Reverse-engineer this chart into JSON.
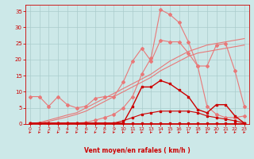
{
  "x": [
    0,
    1,
    2,
    3,
    4,
    5,
    6,
    7,
    8,
    9,
    10,
    11,
    12,
    13,
    14,
    15,
    16,
    17,
    18,
    19,
    20,
    21,
    22,
    23
  ],
  "curves": [
    {
      "label": "line_pink_wiggly",
      "color": "#e87878",
      "linewidth": 0.8,
      "marker": "D",
      "markersize": 2.0,
      "y": [
        8.5,
        8.5,
        5.5,
        8.5,
        6.0,
        5.0,
        5.5,
        8.0,
        8.5,
        8.5,
        13.0,
        19.5,
        23.5,
        19.5,
        26.0,
        25.5,
        25.5,
        22.0,
        18.0,
        18.0,
        24.5,
        25.0,
        16.5,
        5.5
      ]
    },
    {
      "label": "line_pink_peak",
      "color": "#e87878",
      "linewidth": 0.8,
      "marker": "D",
      "markersize": 2.0,
      "y": [
        0.3,
        0.3,
        0.3,
        0.3,
        0.3,
        0.3,
        0.5,
        1.2,
        2.0,
        3.0,
        5.0,
        8.5,
        15.5,
        20.5,
        35.5,
        34.0,
        31.5,
        25.5,
        18.0,
        5.5,
        3.0,
        2.0,
        2.0,
        2.5
      ]
    },
    {
      "label": "line_pink_diag1",
      "color": "#e87878",
      "linewidth": 0.8,
      "marker": null,
      "y": [
        0.0,
        0.5,
        1.2,
        2.0,
        2.8,
        3.5,
        5.0,
        6.5,
        8.0,
        9.5,
        11.0,
        12.5,
        14.0,
        15.5,
        17.5,
        19.5,
        21.0,
        22.5,
        23.5,
        24.5,
        25.0,
        25.5,
        26.0,
        26.5
      ]
    },
    {
      "label": "line_pink_diag2",
      "color": "#e87878",
      "linewidth": 0.8,
      "marker": null,
      "y": [
        0.0,
        0.3,
        0.8,
        1.5,
        2.2,
        3.0,
        4.0,
        5.5,
        7.0,
        8.5,
        10.0,
        11.5,
        13.0,
        14.5,
        16.5,
        18.0,
        19.5,
        21.0,
        22.0,
        22.5,
        23.0,
        23.5,
        24.0,
        24.5
      ]
    },
    {
      "label": "line_dark_main",
      "color": "#cc0000",
      "linewidth": 1.0,
      "marker": "s",
      "markersize": 2.0,
      "y": [
        0.3,
        0.3,
        0.3,
        0.3,
        0.3,
        0.3,
        0.3,
        0.3,
        0.3,
        0.3,
        0.3,
        5.5,
        11.5,
        11.5,
        13.5,
        12.5,
        10.5,
        8.5,
        4.5,
        3.5,
        6.0,
        6.0,
        2.5,
        0.3
      ]
    },
    {
      "label": "line_dark_low",
      "color": "#cc0000",
      "linewidth": 0.8,
      "marker": "s",
      "markersize": 1.5,
      "y": [
        0.3,
        0.3,
        0.3,
        0.3,
        0.3,
        0.3,
        0.3,
        0.3,
        0.3,
        0.3,
        1.0,
        2.0,
        3.0,
        3.5,
        4.0,
        4.0,
        4.0,
        4.0,
        3.5,
        2.5,
        2.0,
        1.5,
        1.0,
        0.3
      ]
    },
    {
      "label": "line_dark_flat",
      "color": "#cc0000",
      "linewidth": 0.7,
      "marker": "s",
      "markersize": 1.5,
      "y": [
        0.3,
        0.3,
        0.3,
        0.3,
        0.3,
        0.3,
        0.3,
        0.3,
        0.3,
        0.3,
        0.3,
        0.3,
        0.3,
        0.3,
        0.3,
        0.3,
        0.3,
        0.3,
        0.3,
        0.3,
        0.3,
        0.3,
        0.3,
        0.3
      ]
    }
  ],
  "xlabel": "Vent moyen/en rafales ( km/h )",
  "xlim": [
    -0.5,
    23.5
  ],
  "ylim": [
    0,
    37
  ],
  "yticks": [
    0,
    5,
    10,
    15,
    20,
    25,
    30,
    35
  ],
  "xticks": [
    0,
    1,
    2,
    3,
    4,
    5,
    6,
    7,
    8,
    9,
    10,
    11,
    12,
    13,
    14,
    15,
    16,
    17,
    18,
    19,
    20,
    21,
    22,
    23
  ],
  "bg_color": "#cce8e8",
  "grid_color": "#aacccc",
  "axis_color": "#cc0000",
  "tick_color": "#cc0000",
  "label_color": "#cc0000"
}
